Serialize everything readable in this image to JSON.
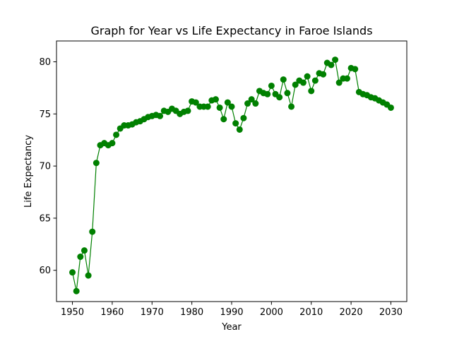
{
  "chart_data": {
    "type": "line",
    "title": "Graph for Year vs Life Expectancy in Faroe Islands",
    "xlabel": "Year",
    "ylabel": "Life Expectancy",
    "xlim": [
      1946,
      2034
    ],
    "ylim": [
      57,
      82
    ],
    "xticks": [
      1950,
      1960,
      1970,
      1980,
      1990,
      2000,
      2010,
      2020,
      2030
    ],
    "yticks": [
      60,
      65,
      70,
      75,
      80
    ],
    "grid": false,
    "color": "#008000",
    "series": [
      {
        "x": [
          1950,
          1951,
          1952,
          1953,
          1954,
          1955,
          1956,
          1957,
          1958,
          1959,
          1960,
          1961,
          1962,
          1963,
          1964,
          1965,
          1966,
          1967,
          1968,
          1969,
          1970,
          1971,
          1972,
          1973,
          1974,
          1975,
          1976,
          1977,
          1978,
          1979,
          1980,
          1981,
          1982,
          1983,
          1984,
          1985,
          1986,
          1987,
          1988,
          1989,
          1990,
          1991,
          1992,
          1993,
          1994,
          1995,
          1996,
          1997,
          1998,
          1999,
          2000,
          2001,
          2002,
          2003,
          2004,
          2005,
          2006,
          2007,
          2008,
          2009,
          2010,
          2011,
          2012,
          2013,
          2014,
          2015,
          2016,
          2017,
          2018,
          2019,
          2020,
          2021,
          2022,
          2023,
          2024,
          2025,
          2026,
          2027,
          2028,
          2029,
          2030
        ],
        "values": [
          59.8,
          58.0,
          61.3,
          61.9,
          59.5,
          63.7,
          70.3,
          72.0,
          72.2,
          72.0,
          72.2,
          73.0,
          73.6,
          73.9,
          73.9,
          74.0,
          74.2,
          74.3,
          74.5,
          74.7,
          74.8,
          74.9,
          74.8,
          75.3,
          75.2,
          75.5,
          75.3,
          75.0,
          75.2,
          75.3,
          76.2,
          76.1,
          75.7,
          75.7,
          75.7,
          76.3,
          76.4,
          75.6,
          74.5,
          76.1,
          75.7,
          74.1,
          73.5,
          74.6,
          76.0,
          76.4,
          76.0,
          77.2,
          77.0,
          76.9,
          77.7,
          76.9,
          76.6,
          78.3,
          77.0,
          75.7,
          77.8,
          78.2,
          78.0,
          78.6,
          77.2,
          78.2,
          78.9,
          78.8,
          79.9,
          79.7,
          80.2,
          78.0,
          78.4,
          78.4,
          79.4,
          79.3,
          77.1,
          76.9,
          76.8,
          76.6,
          76.5,
          76.3,
          76.1,
          75.9,
          75.6
        ]
      }
    ]
  }
}
